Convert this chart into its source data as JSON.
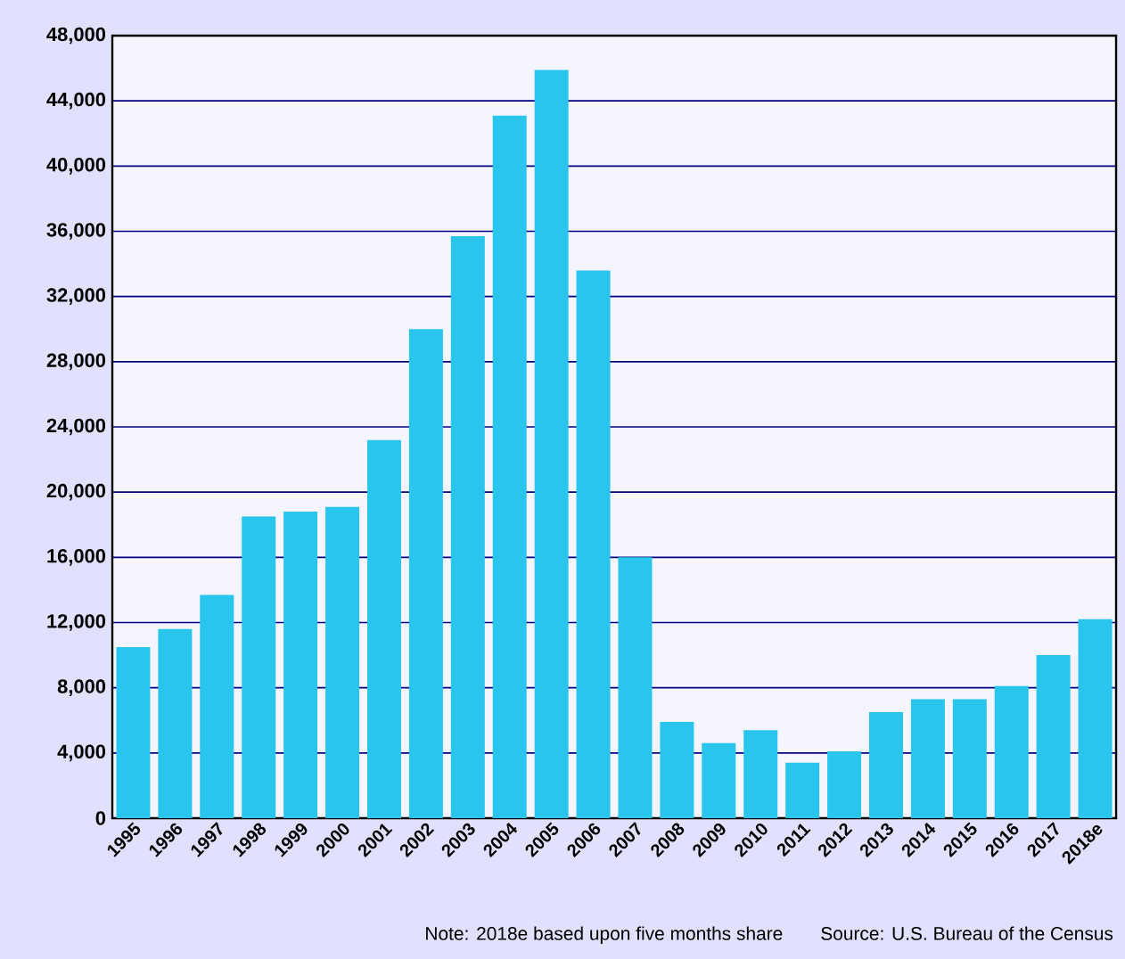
{
  "chart_data": {
    "type": "bar",
    "categories": [
      "1995",
      "1996",
      "1997",
      "1998",
      "1999",
      "2000",
      "2001",
      "2002",
      "2003",
      "2004",
      "2005",
      "2006",
      "2007",
      "2008",
      "2009",
      "2010",
      "2011",
      "2012",
      "2013",
      "2014",
      "2015",
      "2016",
      "2017",
      "2018e"
    ],
    "values": [
      10500,
      11600,
      13700,
      18500,
      18800,
      19100,
      23200,
      30000,
      35700,
      43100,
      45900,
      33600,
      16000,
      5900,
      4600,
      5400,
      3400,
      4100,
      6500,
      7300,
      7300,
      8100,
      10000,
      12200
    ],
    "color": "#29c5ed",
    "ylim": [
      0,
      48000
    ],
    "yticks": [
      {
        "value": 0,
        "label": "0"
      },
      {
        "value": 4000,
        "label": "4,000"
      },
      {
        "value": 8000,
        "label": "8,000"
      },
      {
        "value": 12000,
        "label": "12,000"
      },
      {
        "value": 16000,
        "label": "16,000"
      },
      {
        "value": 20000,
        "label": "20,000"
      },
      {
        "value": 24000,
        "label": "24,000"
      },
      {
        "value": 28000,
        "label": "28,000"
      },
      {
        "value": 32000,
        "label": "32,000"
      },
      {
        "value": 36000,
        "label": "36,000"
      },
      {
        "value": 40000,
        "label": "40,000"
      },
      {
        "value": 44000,
        "label": "44,000"
      },
      {
        "value": 48000,
        "label": "48,000"
      }
    ],
    "grid": "y",
    "annotations": [
      "Note:  2018e based upon five months share",
      "Source:  U.S. Bureau of the Census"
    ]
  }
}
